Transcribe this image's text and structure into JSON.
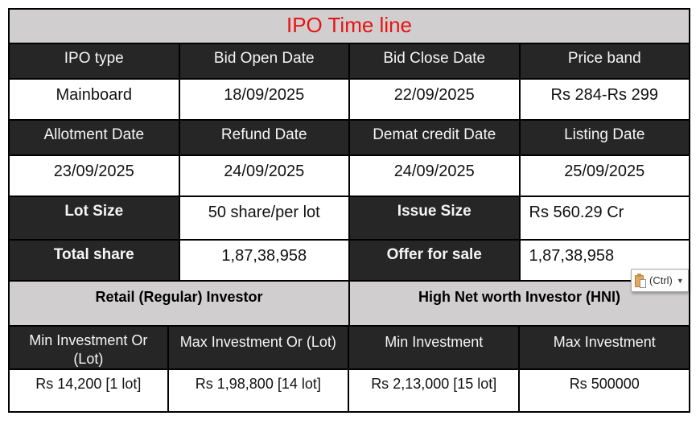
{
  "title": "IPO Time line",
  "header1": [
    "IPO type",
    "Bid Open Date",
    "Bid Close Date",
    "Price band"
  ],
  "data1": [
    "Mainboard",
    "18/09/2025",
    "22/09/2025",
    "Rs 284-Rs 299"
  ],
  "header2": [
    "Allotment Date",
    "Refund Date",
    "Demat credit Date",
    "Listing Date"
  ],
  "data2": [
    "23/09/2025",
    "24/09/2025",
    "24/09/2025",
    "25/09/2025"
  ],
  "lot_row": {
    "label1": "Lot Size",
    "value1": "50 share/per lot",
    "label2": "Issue Size",
    "value2": "Rs 560.29 Cr"
  },
  "share_row": {
    "label1": "Total share",
    "value1": "1,87,38,958",
    "label2": "Offer for sale",
    "value2": "1,87,38,958"
  },
  "investor_sections": [
    "Retail (Regular) Investor",
    "High Net worth Investor (HNI)"
  ],
  "header3": [
    "Min Investment Or\n(Lot)",
    "Max Investment Or (Lot)",
    "Min Investment",
    "Max Investment"
  ],
  "data3": [
    "Rs 14,200 [1 lot]",
    "Rs 1,98,800 [14 lot]",
    "Rs 2,13,000 [15 lot]",
    "Rs 500000"
  ],
  "paste_button": {
    "label": "(Ctrl)",
    "icon": "clipboard-paste-icon",
    "dropdown_glyph": "▼"
  },
  "colors": {
    "header_bg": "#262626",
    "band_bg": "#d0cece",
    "title_red": "#e81313",
    "border": "#000000"
  }
}
